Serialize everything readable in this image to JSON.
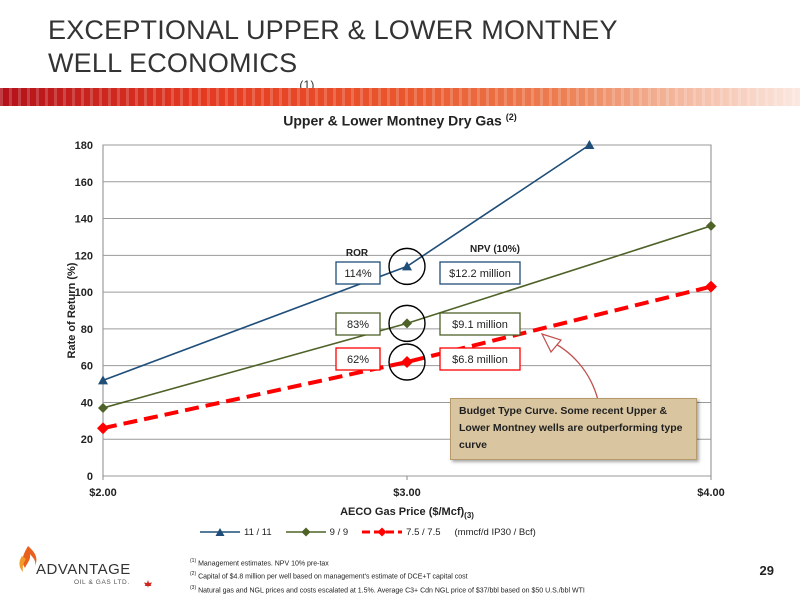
{
  "slide": {
    "title": "EXCEPTIONAL UPPER & LOWER MONTNEY WELL ECONOMICS",
    "title_note": "(1)",
    "page_number": "29"
  },
  "chart_data": {
    "type": "line",
    "title": "Upper & Lower Montney Dry Gas",
    "title_note": "(2)",
    "xlabel": "AECO Gas Price ($/Mcf)",
    "xlabel_note": "(3)",
    "ylabel": "Rate of Return (%)",
    "x_categories": [
      "$2.00",
      "$3.00",
      "$4.00"
    ],
    "x": [
      2.0,
      3.0,
      4.0
    ],
    "xlim": [
      2.0,
      4.0
    ],
    "ylim": [
      0,
      180
    ],
    "yticks": [
      0,
      20,
      40,
      60,
      80,
      100,
      120,
      140,
      160,
      180
    ],
    "grid": "horizontal",
    "legend_position": "bottom",
    "legend_note": "(mmcf/d IP30 / Bcf)",
    "series": [
      {
        "name": "11 / 11",
        "color": "#1f4e79",
        "marker": "triangle",
        "style": "solid",
        "x": [
          2.0,
          3.0,
          3.6
        ],
        "y": [
          52,
          114,
          180
        ]
      },
      {
        "name": "9 / 9",
        "color": "#4f6228",
        "marker": "diamond",
        "style": "solid",
        "x": [
          2.0,
          3.0,
          4.0
        ],
        "y": [
          37,
          83,
          136
        ]
      },
      {
        "name": "7.5 / 7.5",
        "color": "#ff0000",
        "marker": "diamond",
        "style": "dashed",
        "x": [
          2.0,
          3.0,
          4.0
        ],
        "y": [
          26,
          62,
          103
        ]
      }
    ],
    "annotations": {
      "ror_header": "ROR",
      "npv_header": "NPV (10%)",
      "rows": [
        {
          "ror": "114%",
          "npv": "$12.2 million",
          "color": "#1f4e79"
        },
        {
          "ror": "83%",
          "npv": "$9.1 million",
          "color": "#4f6228"
        },
        {
          "ror": "62%",
          "npv": "$6.8 million",
          "color": "#ff0000"
        }
      ],
      "callout": "Budget Type Curve. Some recent Upper & Lower Montney wells are outperforming type curve"
    }
  },
  "footnotes": [
    {
      "num": "(1)",
      "text": "Management estimates. NPV 10% pre-tax"
    },
    {
      "num": "(2)",
      "text": "Capital of $4.8 million per well based on management's estimate of DCE+T capital cost"
    },
    {
      "num": "(3)",
      "text": "Natural gas and NGL prices and costs escalated at 1.5%. Average C3+ Cdn NGL price of $37/bbl based on $50 U.S./bbl WTI"
    }
  ],
  "logo": {
    "word": "ADVANTAGE",
    "sub": "OIL & GAS LTD."
  }
}
